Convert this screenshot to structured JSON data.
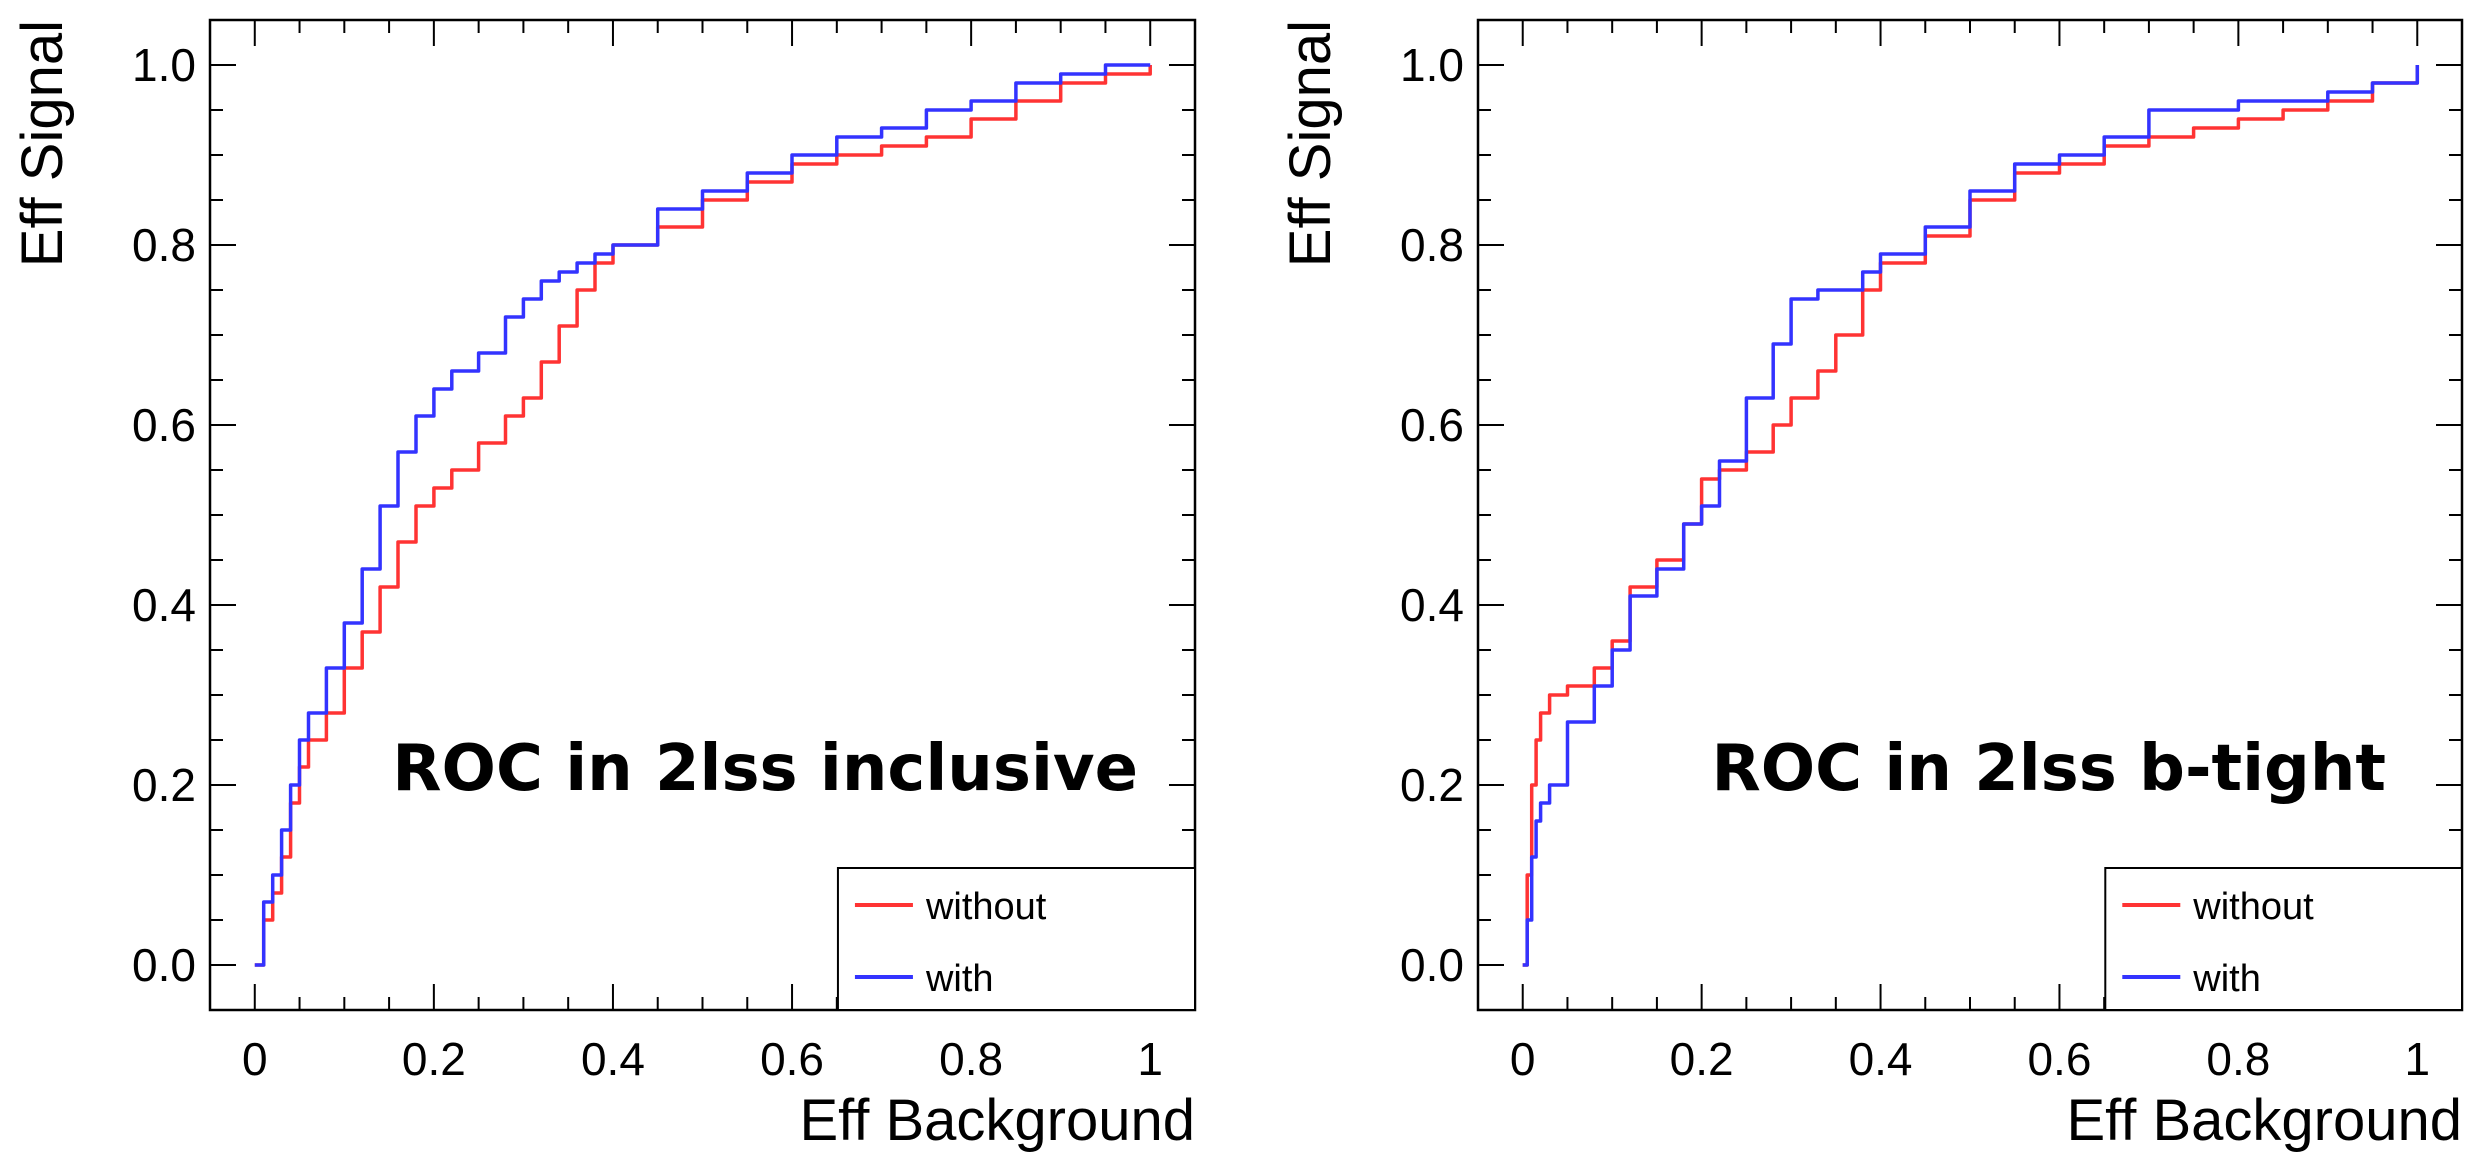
{
  "chart_data": [
    {
      "type": "line",
      "overlay_title": "ROC in 2lss inclusive",
      "xlabel": "Eff Background",
      "ylabel": "Eff Signal",
      "xlim": [
        -0.05,
        1.05
      ],
      "ylim": [
        -0.05,
        1.05
      ],
      "xticks": [
        0,
        0.2,
        0.4,
        0.6,
        0.8,
        1
      ],
      "xtick_labels": [
        "0",
        "0.2",
        "0.4",
        "0.6",
        "0.8",
        "1"
      ],
      "yticks": [
        0,
        0.2,
        0.4,
        0.6,
        0.8,
        1.0
      ],
      "ytick_labels": [
        "0.0",
        "0.2",
        "0.4",
        "0.6",
        "0.8",
        "1.0"
      ],
      "legend": {
        "position": "bottom-right",
        "entries": [
          {
            "label": "without",
            "color": "#ff3333"
          },
          {
            "label": "with",
            "color": "#3333ff"
          }
        ]
      },
      "series": [
        {
          "name": "without",
          "color": "#ff3333",
          "x": [
            0,
            0.01,
            0.02,
            0.03,
            0.04,
            0.05,
            0.06,
            0.08,
            0.1,
            0.12,
            0.14,
            0.16,
            0.18,
            0.2,
            0.22,
            0.25,
            0.28,
            0.3,
            0.32,
            0.34,
            0.36,
            0.38,
            0.4,
            0.45,
            0.5,
            0.55,
            0.6,
            0.65,
            0.7,
            0.75,
            0.8,
            0.85,
            0.9,
            0.95,
            1.0
          ],
          "y": [
            0.0,
            0.05,
            0.08,
            0.12,
            0.18,
            0.22,
            0.25,
            0.28,
            0.33,
            0.37,
            0.42,
            0.47,
            0.51,
            0.53,
            0.55,
            0.58,
            0.61,
            0.63,
            0.67,
            0.71,
            0.75,
            0.78,
            0.8,
            0.82,
            0.85,
            0.87,
            0.89,
            0.9,
            0.91,
            0.92,
            0.94,
            0.96,
            0.98,
            0.99,
            1.0
          ]
        },
        {
          "name": "with",
          "color": "#3333ff",
          "x": [
            0,
            0.01,
            0.02,
            0.03,
            0.04,
            0.05,
            0.06,
            0.08,
            0.1,
            0.12,
            0.14,
            0.16,
            0.18,
            0.2,
            0.22,
            0.25,
            0.28,
            0.3,
            0.32,
            0.34,
            0.36,
            0.38,
            0.4,
            0.45,
            0.5,
            0.55,
            0.6,
            0.65,
            0.7,
            0.75,
            0.8,
            0.85,
            0.9,
            0.95,
            1.0
          ],
          "y": [
            0.0,
            0.07,
            0.1,
            0.15,
            0.2,
            0.25,
            0.28,
            0.33,
            0.38,
            0.44,
            0.51,
            0.57,
            0.61,
            0.64,
            0.66,
            0.68,
            0.72,
            0.74,
            0.76,
            0.77,
            0.78,
            0.79,
            0.8,
            0.84,
            0.86,
            0.88,
            0.9,
            0.92,
            0.93,
            0.95,
            0.96,
            0.98,
            0.99,
            1.0,
            1.0
          ]
        }
      ]
    },
    {
      "type": "line",
      "overlay_title": "ROC in 2lss b-tight",
      "xlabel": "Eff Background",
      "ylabel": "Eff Signal",
      "xlim": [
        -0.05,
        1.05
      ],
      "ylim": [
        -0.05,
        1.05
      ],
      "xticks": [
        0,
        0.2,
        0.4,
        0.6,
        0.8,
        1
      ],
      "xtick_labels": [
        "0",
        "0.2",
        "0.4",
        "0.6",
        "0.8",
        "1"
      ],
      "yticks": [
        0,
        0.2,
        0.4,
        0.6,
        0.8,
        1.0
      ],
      "ytick_labels": [
        "0.0",
        "0.2",
        "0.4",
        "0.6",
        "0.8",
        "1.0"
      ],
      "legend": {
        "position": "bottom-right",
        "entries": [
          {
            "label": "without",
            "color": "#ff3333"
          },
          {
            "label": "with",
            "color": "#3333ff"
          }
        ]
      },
      "series": [
        {
          "name": "without",
          "color": "#ff3333",
          "x": [
            0,
            0.005,
            0.01,
            0.015,
            0.02,
            0.03,
            0.05,
            0.08,
            0.1,
            0.12,
            0.15,
            0.18,
            0.2,
            0.22,
            0.25,
            0.28,
            0.3,
            0.33,
            0.35,
            0.38,
            0.4,
            0.45,
            0.5,
            0.55,
            0.6,
            0.65,
            0.7,
            0.75,
            0.8,
            0.85,
            0.9,
            0.95,
            1.0
          ],
          "y": [
            0.0,
            0.1,
            0.2,
            0.25,
            0.28,
            0.3,
            0.31,
            0.33,
            0.36,
            0.42,
            0.45,
            0.49,
            0.54,
            0.55,
            0.57,
            0.6,
            0.63,
            0.66,
            0.7,
            0.75,
            0.78,
            0.81,
            0.85,
            0.88,
            0.89,
            0.91,
            0.92,
            0.93,
            0.94,
            0.95,
            0.96,
            0.98,
            1.0
          ]
        },
        {
          "name": "with",
          "color": "#3333ff",
          "x": [
            0,
            0.005,
            0.01,
            0.015,
            0.02,
            0.03,
            0.05,
            0.08,
            0.1,
            0.12,
            0.15,
            0.18,
            0.2,
            0.22,
            0.25,
            0.28,
            0.3,
            0.33,
            0.35,
            0.38,
            0.4,
            0.45,
            0.5,
            0.55,
            0.6,
            0.65,
            0.7,
            0.75,
            0.8,
            0.85,
            0.9,
            0.95,
            1.0
          ],
          "y": [
            0.0,
            0.05,
            0.12,
            0.16,
            0.18,
            0.2,
            0.27,
            0.31,
            0.35,
            0.41,
            0.44,
            0.49,
            0.51,
            0.56,
            0.63,
            0.69,
            0.74,
            0.75,
            0.75,
            0.77,
            0.79,
            0.82,
            0.86,
            0.89,
            0.9,
            0.92,
            0.95,
            0.95,
            0.96,
            0.96,
            0.97,
            0.98,
            1.0
          ]
        }
      ]
    }
  ]
}
